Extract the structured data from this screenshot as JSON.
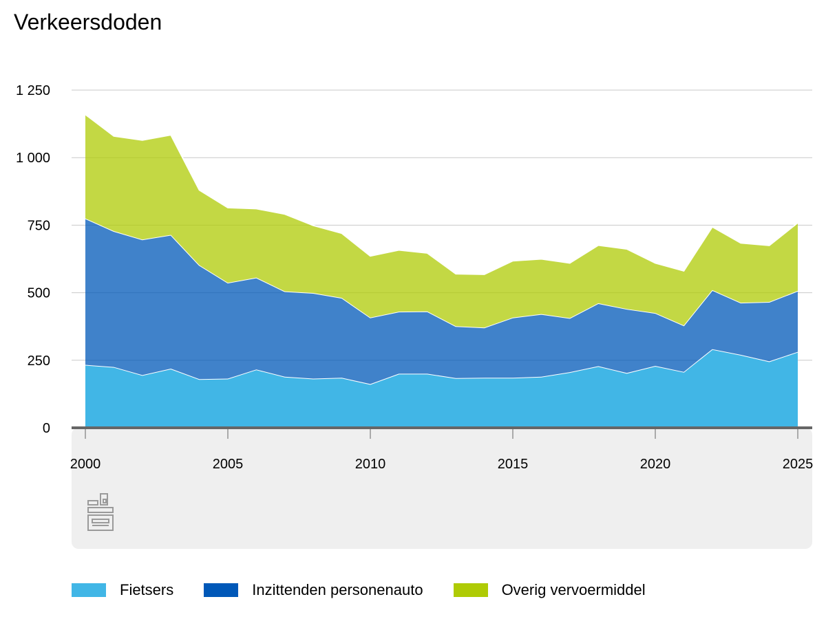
{
  "title": "Verkeersdoden",
  "colors": {
    "fietsers": "#41b6e6",
    "personenauto": "#0058b8",
    "overig": "#afcb05",
    "grid": "#c8c8c8",
    "footer_bg": "#efefef",
    "axis": "#666666"
  },
  "logo_icon": "cbs-logo-icon",
  "chart_data": {
    "type": "area",
    "stacked": true,
    "title": "Verkeersdoden",
    "x": [
      2000,
      2001,
      2002,
      2003,
      2004,
      2005,
      2006,
      2007,
      2008,
      2009,
      2010,
      2011,
      2012,
      2013,
      2014,
      2015,
      2016,
      2017,
      2018,
      2019,
      2020,
      2021,
      2022,
      2023,
      2024,
      2025
    ],
    "x_ticks": [
      "2000",
      "2005",
      "2010",
      "2015",
      "2020",
      "2025"
    ],
    "y_ticks": [
      "0",
      "250",
      "500",
      "750",
      "1 000",
      "1 250"
    ],
    "ylim": [
      0,
      1250
    ],
    "grid": true,
    "legend_position": "bottom",
    "series": [
      {
        "name": "Fietsers",
        "color": "#41b6e6",
        "values": [
          233,
          225,
          195,
          219,
          180,
          182,
          216,
          189,
          182,
          185,
          162,
          200,
          200,
          184,
          185,
          185,
          189,
          206,
          228,
          203,
          229,
          207,
          291,
          270,
          246,
          281
        ]
      },
      {
        "name": "Inzittenden personenauto",
        "color": "#0058b8",
        "values": [
          542,
          503,
          502,
          495,
          422,
          355,
          340,
          316,
          317,
          296,
          246,
          230,
          231,
          192,
          186,
          223,
          232,
          200,
          233,
          237,
          196,
          172,
          219,
          193,
          220,
          226
        ]
      },
      {
        "name": "Overig vervoermiddel",
        "color": "#afcb05",
        "values": [
          385,
          352,
          368,
          370,
          278,
          278,
          255,
          286,
          250,
          239,
          228,
          228,
          216,
          194,
          197,
          210,
          204,
          204,
          215,
          222,
          185,
          202,
          234,
          221,
          209,
          252
        ]
      }
    ]
  }
}
